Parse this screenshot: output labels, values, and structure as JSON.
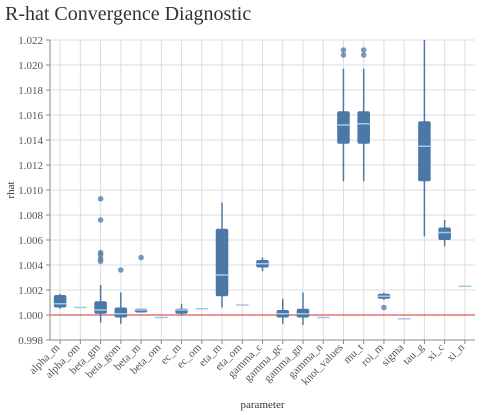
{
  "chart_data": {
    "type": "box",
    "title": "R-hat Convergence Diagnostic",
    "xlabel": "parameter",
    "ylabel": "rhat",
    "ylim": [
      0.998,
      1.022
    ],
    "yticks": [
      "0.998",
      "1.000",
      "1.002",
      "1.004",
      "1.006",
      "1.008",
      "1.010",
      "1.012",
      "1.014",
      "1.016",
      "1.018",
      "1.020",
      "1.022"
    ],
    "reference_line": {
      "y": 1.0,
      "color": "#e57373"
    },
    "grid": true,
    "colors": {
      "box": "#4c78a8",
      "median": "#9ecae9",
      "outlier": "#4c78a8",
      "reference": "#e57373"
    },
    "categories": [
      "alpha_m",
      "alpha_om",
      "beta_gm",
      "beta_gom",
      "beta_m",
      "beta_om",
      "ec_m",
      "ec_om",
      "eta_m",
      "eta_om",
      "gamma_c",
      "gamma_gc",
      "gamma_gn",
      "gamma_n",
      "knot_values",
      "mu_t",
      "roi_m",
      "sigma",
      "tau_g",
      "xi_c",
      "xi_n"
    ],
    "boxes": [
      {
        "category": "alpha_m",
        "min": 1.0005,
        "q1": 1.0006,
        "median": 1.0009,
        "q3": 1.0016,
        "max": 1.0017,
        "outliers": []
      },
      {
        "category": "alpha_om",
        "min": 1.0006,
        "q1": 1.0006,
        "median": 1.0006,
        "q3": 1.0006,
        "max": 1.0006,
        "outliers": []
      },
      {
        "category": "beta_gm",
        "min": 0.9994,
        "q1": 1.0001,
        "median": 1.0004,
        "q3": 1.0011,
        "max": 1.0024,
        "outliers": [
          1.0093,
          1.0076,
          1.005,
          1.0048,
          1.0045,
          1.0043
        ]
      },
      {
        "category": "beta_gom",
        "min": 0.9993,
        "q1": 0.9998,
        "median": 1.0001,
        "q3": 1.0006,
        "max": 1.0018,
        "outliers": [
          1.0036
        ]
      },
      {
        "category": "beta_m",
        "min": 1.0002,
        "q1": 1.0002,
        "median": 1.0004,
        "q3": 1.0005,
        "max": 1.0005,
        "outliers": [
          1.0046
        ]
      },
      {
        "category": "beta_om",
        "min": 0.9998,
        "q1": 0.9998,
        "median": 0.9998,
        "q3": 0.9998,
        "max": 0.9998,
        "outliers": []
      },
      {
        "category": "ec_m",
        "min": 1.0,
        "q1": 1.0001,
        "median": 1.0004,
        "q3": 1.0005,
        "max": 1.0009,
        "outliers": []
      },
      {
        "category": "ec_om",
        "min": 1.0005,
        "q1": 1.0005,
        "median": 1.0005,
        "q3": 1.0005,
        "max": 1.0005,
        "outliers": []
      },
      {
        "category": "eta_m",
        "min": 1.0006,
        "q1": 1.0015,
        "median": 1.0032,
        "q3": 1.0069,
        "max": 1.009,
        "outliers": []
      },
      {
        "category": "eta_om",
        "min": 1.0008,
        "q1": 1.0008,
        "median": 1.0008,
        "q3": 1.0008,
        "max": 1.0008,
        "outliers": []
      },
      {
        "category": "gamma_c",
        "min": 1.0035,
        "q1": 1.0038,
        "median": 1.0041,
        "q3": 1.0044,
        "max": 1.0046,
        "outliers": []
      },
      {
        "category": "gamma_gc",
        "min": 0.9993,
        "q1": 0.9998,
        "median": 1.0001,
        "q3": 1.0004,
        "max": 1.0013,
        "outliers": []
      },
      {
        "category": "gamma_gn",
        "min": 0.9992,
        "q1": 0.9998,
        "median": 1.0001,
        "q3": 1.0005,
        "max": 1.0018,
        "outliers": []
      },
      {
        "category": "gamma_n",
        "min": 0.9998,
        "q1": 0.9998,
        "median": 0.9998,
        "q3": 0.9998,
        "max": 0.9998,
        "outliers": []
      },
      {
        "category": "knot_values",
        "min": 1.0107,
        "q1": 1.0137,
        "median": 1.0152,
        "q3": 1.0163,
        "max": 1.0197,
        "outliers": [
          1.0212,
          1.0208
        ]
      },
      {
        "category": "mu_t",
        "min": 1.0107,
        "q1": 1.0137,
        "median": 1.0153,
        "q3": 1.0163,
        "max": 1.0197,
        "outliers": [
          1.0212,
          1.0208
        ]
      },
      {
        "category": "roi_m",
        "min": 1.0012,
        "q1": 1.0013,
        "median": 1.0015,
        "q3": 1.0017,
        "max": 1.0018,
        "outliers": [
          1.0006
        ]
      },
      {
        "category": "sigma",
        "min": 0.9997,
        "q1": 0.9997,
        "median": 0.9997,
        "q3": 0.9997,
        "max": 0.9997,
        "outliers": []
      },
      {
        "category": "tau_g",
        "min": 1.0063,
        "q1": 1.0107,
        "median": 1.0135,
        "q3": 1.0155,
        "max": 1.022,
        "outliers": []
      },
      {
        "category": "xi_c",
        "min": 1.0055,
        "q1": 1.006,
        "median": 1.0066,
        "q3": 1.007,
        "max": 1.0076,
        "outliers": []
      },
      {
        "category": "xi_n",
        "min": 1.0023,
        "q1": 1.0023,
        "median": 1.0023,
        "q3": 1.0023,
        "max": 1.0023,
        "outliers": []
      }
    ]
  }
}
